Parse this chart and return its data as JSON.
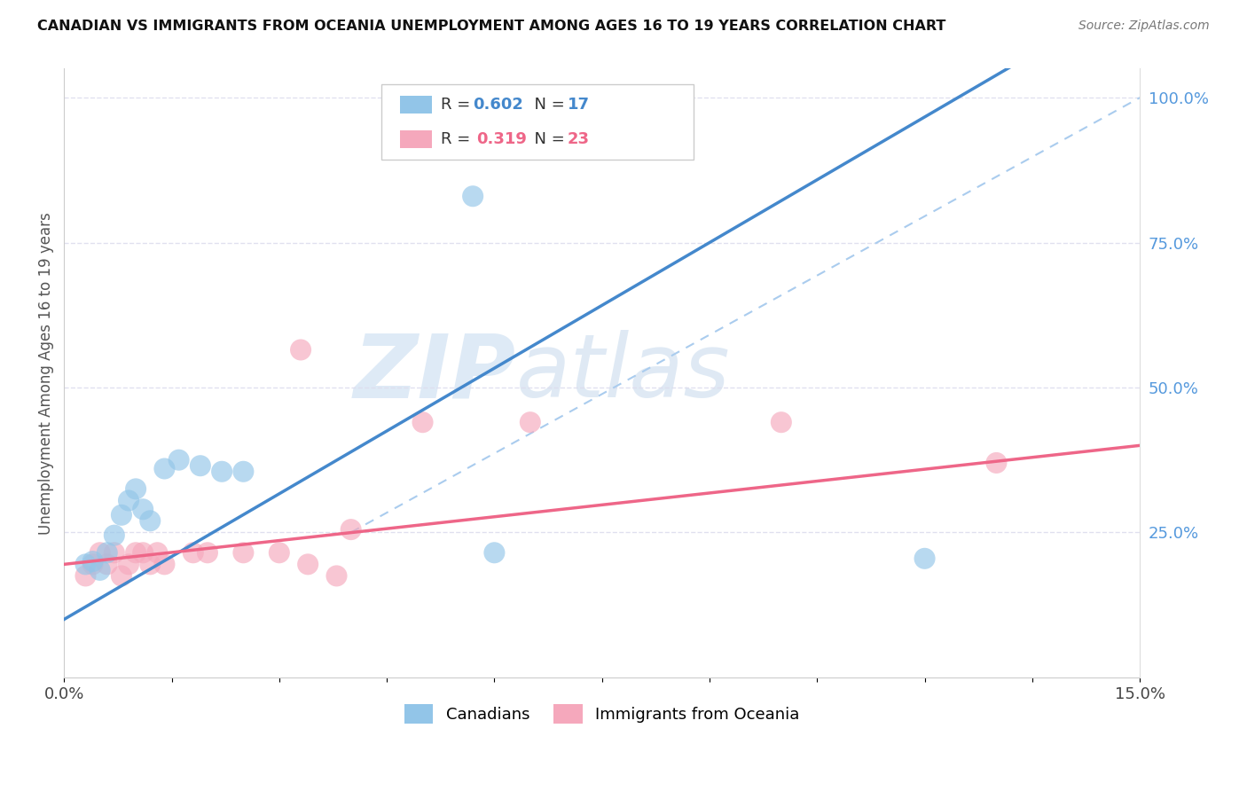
{
  "title": "CANADIAN VS IMMIGRANTS FROM OCEANIA UNEMPLOYMENT AMONG AGES 16 TO 19 YEARS CORRELATION CHART",
  "source_text": "Source: ZipAtlas.com",
  "ylabel": "Unemployment Among Ages 16 to 19 years",
  "xlim": [
    0.0,
    0.15
  ],
  "ylim": [
    0.0,
    1.05
  ],
  "x_ticks": [
    0.0,
    0.015,
    0.03,
    0.045,
    0.06,
    0.075,
    0.09,
    0.105,
    0.12,
    0.135,
    0.15
  ],
  "x_tick_labels": [
    "0.0%",
    "",
    "",
    "",
    "",
    "",
    "",
    "",
    "",
    "",
    "15.0%"
  ],
  "y_ticks_right": [
    0.25,
    0.5,
    0.75,
    1.0
  ],
  "y_tick_labels_right": [
    "25.0%",
    "50.0%",
    "75.0%",
    "100.0%"
  ],
  "canadian_color": "#92C5E8",
  "oceania_color": "#F5A8BC",
  "canadian_line_color": "#4488CC",
  "oceania_line_color": "#EE6688",
  "ref_line_color": "#AACCEE",
  "background_color": "#FFFFFF",
  "watermark_color": "#C8DCF0",
  "legend_R_canadian": "0.602",
  "legend_N_canadian": "17",
  "legend_R_oceania": "0.319",
  "legend_N_oceania": "23",
  "canadians_label": "Canadians",
  "oceania_label": "Immigrants from Oceania",
  "canadian_x": [
    0.003,
    0.004,
    0.005,
    0.006,
    0.007,
    0.008,
    0.009,
    0.01,
    0.011,
    0.012,
    0.014,
    0.016,
    0.019,
    0.022,
    0.025,
    0.06,
    0.12
  ],
  "canadian_y": [
    0.195,
    0.2,
    0.185,
    0.215,
    0.245,
    0.28,
    0.305,
    0.325,
    0.29,
    0.27,
    0.36,
    0.375,
    0.365,
    0.355,
    0.355,
    0.215,
    0.205
  ],
  "oceania_x": [
    0.003,
    0.004,
    0.005,
    0.006,
    0.007,
    0.008,
    0.009,
    0.01,
    0.011,
    0.012,
    0.013,
    0.014,
    0.018,
    0.02,
    0.025,
    0.03,
    0.034,
    0.038,
    0.04,
    0.05,
    0.065,
    0.1,
    0.13
  ],
  "oceania_y": [
    0.175,
    0.195,
    0.215,
    0.195,
    0.215,
    0.175,
    0.195,
    0.215,
    0.215,
    0.195,
    0.215,
    0.195,
    0.215,
    0.215,
    0.215,
    0.215,
    0.195,
    0.175,
    0.255,
    0.44,
    0.44,
    0.44,
    0.37
  ],
  "canadian_outlier_x": [
    0.057
  ],
  "canadian_outlier_y": [
    0.83
  ],
  "oceania_outlier_x": [
    0.033
  ],
  "oceania_outlier_y": [
    0.565
  ]
}
